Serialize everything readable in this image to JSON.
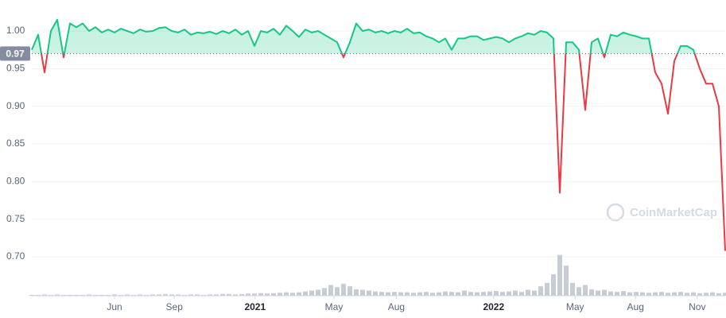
{
  "chart_data": {
    "type": "line",
    "values": [
      0.975,
      0.995,
      0.945,
      1.0,
      1.015,
      0.965,
      1.01,
      1.005,
      1.01,
      1.0,
      1.005,
      0.998,
      1.002,
      0.998,
      1.003,
      1.0,
      0.997,
      1.002,
      0.999,
      1.0,
      1.004,
      1.005,
      1.0,
      0.998,
      1.002,
      0.995,
      0.998,
      0.997,
      0.999,
      0.996,
      1.0,
      0.997,
      1.002,
      0.995,
      1.0,
      0.98,
      1.0,
      0.998,
      1.003,
      0.995,
      1.007,
      1.0,
      0.992,
      1.002,
      0.998,
      1.0,
      0.995,
      0.99,
      0.985,
      0.965,
      0.985,
      1.01,
      1.0,
      1.002,
      0.998,
      1.0,
      0.997,
      1.0,
      0.998,
      1.003,
      0.997,
      0.998,
      0.993,
      0.99,
      0.985,
      0.99,
      0.975,
      0.99,
      0.99,
      0.993,
      0.993,
      0.988,
      0.99,
      0.992,
      0.99,
      0.985,
      0.99,
      0.993,
      0.997,
      0.995,
      1.0,
      0.998,
      0.99,
      0.785,
      0.985,
      0.985,
      0.975,
      0.895,
      0.985,
      0.99,
      0.965,
      0.995,
      0.993,
      0.998,
      0.995,
      0.993,
      0.99,
      0.99,
      0.945,
      0.93,
      0.89,
      0.96,
      0.98,
      0.98,
      0.975,
      0.95,
      0.93,
      0.93,
      0.9,
      0.708
    ],
    "volume": [
      2,
      2,
      3,
      2,
      3,
      2,
      2,
      2,
      2,
      3,
      2,
      2,
      2,
      3,
      2,
      3,
      2,
      3,
      2,
      3,
      3,
      4,
      3,
      3,
      2,
      3,
      3,
      2,
      3,
      3,
      4,
      4,
      3,
      4,
      5,
      5,
      6,
      5,
      6,
      7,
      8,
      7,
      8,
      10,
      12,
      14,
      18,
      25,
      20,
      28,
      22,
      15,
      14,
      12,
      10,
      9,
      8,
      9,
      8,
      8,
      7,
      8,
      9,
      7,
      8,
      10,
      9,
      8,
      12,
      9,
      8,
      9,
      10,
      11,
      9,
      10,
      12,
      9,
      14,
      12,
      22,
      30,
      50,
      95,
      70,
      30,
      20,
      25,
      15,
      12,
      14,
      10,
      9,
      11,
      8,
      9,
      8,
      7,
      8,
      9,
      7,
      8,
      9,
      7,
      8,
      6,
      7,
      8,
      6,
      7
    ],
    "volume_ylim": [
      0,
      100
    ],
    "baseline": 0.97,
    "up_color": "#16c784",
    "down_color": "#ea3943",
    "volume_color": "#c8ccd6",
    "ylim": [
      0.68,
      1.025
    ],
    "yticks": [
      {
        "value": 0.7,
        "label": "0.70"
      },
      0.75,
      {
        "value": 0.8,
        "label": "0.80"
      },
      0.85,
      {
        "value": 0.9,
        "label": "0.90"
      },
      0.95,
      {
        "value": 1,
        "label": "1.00"
      }
    ],
    "xlim": [
      0,
      109
    ],
    "xticks": [
      {
        "value": 13,
        "label": "Jun"
      },
      {
        "value": 22.4,
        "label": "Sep"
      },
      {
        "value": 35.1,
        "label": "2021"
      },
      {
        "value": 47.5,
        "label": "May"
      },
      {
        "value": 57.3,
        "label": "Aug"
      },
      {
        "value": 72.6,
        "label": "2022"
      },
      {
        "value": 85.4,
        "label": "May"
      },
      {
        "value": 94.9,
        "label": "Aug"
      },
      {
        "value": 104.6,
        "label": "Nov"
      }
    ],
    "grid": true,
    "watermark": "CoinMarketCap"
  }
}
